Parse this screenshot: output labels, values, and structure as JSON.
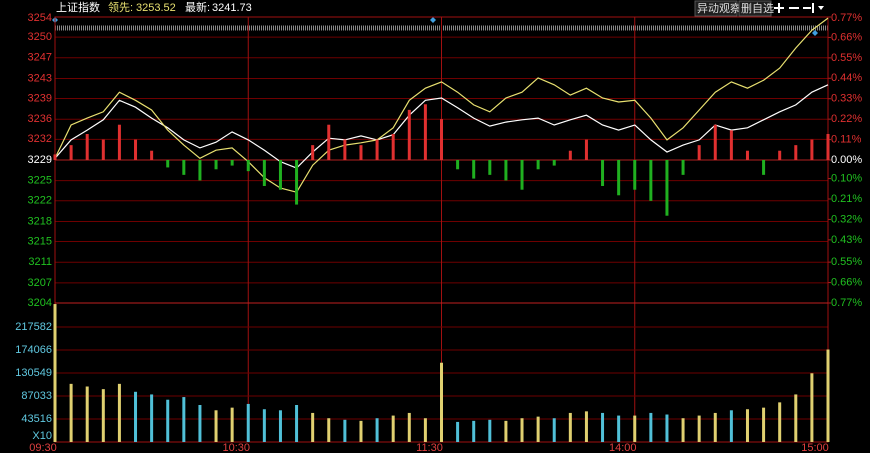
{
  "header": {
    "name": "上证指数",
    "lead_label": "领先:",
    "lead_value": 3253.52,
    "last_label": "最新:",
    "last_value": 3241.73,
    "buttons": [
      "异动观察",
      "删自选"
    ]
  },
  "chart_data": [
    {
      "type": "line",
      "x": [
        0,
        5,
        10,
        15,
        20,
        25,
        30,
        35,
        40,
        45,
        50,
        55,
        60,
        65,
        70,
        75,
        80,
        85,
        90,
        95,
        100,
        105,
        110,
        115,
        120,
        125,
        130,
        135,
        140,
        145,
        150,
        155,
        160,
        165,
        170,
        175,
        180,
        185,
        190,
        195,
        200,
        205,
        210,
        215,
        220,
        225,
        230,
        235,
        240
      ],
      "xlim": [
        0,
        240
      ],
      "xticks": [
        {
          "value": 0,
          "label": "09:30"
        },
        {
          "value": 60,
          "label": "10:30"
        },
        {
          "value": 120,
          "label": "11:30"
        },
        {
          "value": 180,
          "label": "14:00"
        },
        {
          "value": 240,
          "label": "15:00"
        }
      ],
      "ylim": [
        3204.0,
        3253.8
      ],
      "yticks": [
        {
          "value": 3253.8,
          "label": "3254"
        },
        {
          "value": 3250.3,
          "label": "3250"
        },
        {
          "value": 3246.7,
          "label": "3247"
        },
        {
          "value": 3243.1,
          "label": "3243"
        },
        {
          "value": 3239.6,
          "label": "3239"
        },
        {
          "value": 3236.0,
          "label": "3236"
        },
        {
          "value": 3232.5,
          "label": "3232"
        },
        {
          "value": 3228.9,
          "label": "3229"
        },
        {
          "value": 3225.3,
          "label": "3225"
        },
        {
          "value": 3221.8,
          "label": "3222"
        },
        {
          "value": 3218.2,
          "label": "3218"
        },
        {
          "value": 3214.7,
          "label": "3215"
        },
        {
          "value": 3211.1,
          "label": "3211"
        },
        {
          "value": 3207.5,
          "label": "3207"
        },
        {
          "value": 3204.0,
          "label": "3204"
        }
      ],
      "y2lim": [
        -0.77,
        0.77
      ],
      "y2ticks": [
        {
          "value": 0.77,
          "label": "0.77%"
        },
        {
          "value": 0.66,
          "label": "0.66%"
        },
        {
          "value": 0.55,
          "label": "0.55%"
        },
        {
          "value": 0.44,
          "label": "0.44%"
        },
        {
          "value": 0.33,
          "label": "0.33%"
        },
        {
          "value": 0.22,
          "label": "0.22%"
        },
        {
          "value": 0.11,
          "label": "0.11%"
        },
        {
          "value": 0,
          "label": "0.00%"
        },
        {
          "value": -0.1,
          "label": "0.10%"
        },
        {
          "value": -0.21,
          "label": "0.21%"
        },
        {
          "value": -0.32,
          "label": "0.32%"
        },
        {
          "value": -0.43,
          "label": "0.43%"
        },
        {
          "value": -0.55,
          "label": "0.55%"
        },
        {
          "value": -0.66,
          "label": "0.66%"
        },
        {
          "value": -0.77,
          "label": "0.77%"
        }
      ],
      "series": [
        {
          "color": "#ffffff",
          "values": [
            3229.2,
            3232.4,
            3234.1,
            3235.9,
            3239.3,
            3238.1,
            3236.2,
            3234.5,
            3232.4,
            3231.0,
            3232.0,
            3233.8,
            3232.4,
            3230.6,
            3228.6,
            3227.5,
            3230.3,
            3232.7,
            3232.4,
            3233.1,
            3232.4,
            3233.3,
            3236.7,
            3239.3,
            3239.7,
            3238.0,
            3236.2,
            3234.8,
            3235.5,
            3235.9,
            3236.2,
            3235.0,
            3235.9,
            3236.7,
            3235.0,
            3234.1,
            3235.0,
            3232.4,
            3230.3,
            3231.5,
            3232.4,
            3235.0,
            3234.1,
            3234.5,
            3235.9,
            3237.3,
            3238.5,
            3240.7,
            3242.0
          ]
        },
        {
          "color": "#e8e070",
          "values": [
            3229.2,
            3235.0,
            3236.2,
            3237.3,
            3240.7,
            3239.3,
            3237.6,
            3234.1,
            3231.5,
            3229.2,
            3230.6,
            3231.0,
            3228.6,
            3225.8,
            3224.0,
            3223.3,
            3228.0,
            3230.6,
            3231.5,
            3231.9,
            3232.4,
            3234.5,
            3239.3,
            3241.4,
            3242.5,
            3240.7,
            3238.5,
            3237.3,
            3239.7,
            3240.7,
            3243.2,
            3242.0,
            3240.2,
            3241.4,
            3239.7,
            3239.0,
            3239.3,
            3236.2,
            3232.4,
            3234.5,
            3237.6,
            3240.7,
            3242.5,
            3241.4,
            3242.8,
            3244.9,
            3248.4,
            3251.5,
            3253.6
          ]
        },
        {
          "type": "bar",
          "axis": "y2",
          "up_color": "#e03030",
          "down_color": "#20b020",
          "values": [
            0.03,
            0.08,
            0.14,
            0.11,
            0.19,
            0.11,
            0.05,
            -0.04,
            -0.08,
            -0.11,
            -0.05,
            -0.03,
            -0.06,
            -0.14,
            -0.16,
            -0.24,
            0.08,
            0.19,
            0.11,
            0.08,
            0.11,
            0.14,
            0.27,
            0.3,
            0.22,
            -0.05,
            -0.1,
            -0.08,
            -0.11,
            -0.16,
            -0.05,
            -0.03,
            0.05,
            0.11,
            -0.14,
            -0.19,
            -0.16,
            -0.22,
            -0.3,
            -0.08,
            0.08,
            0.19,
            0.16,
            0.05,
            -0.08,
            0.05,
            0.08,
            0.11,
            0.14
          ]
        }
      ]
    },
    {
      "type": "bar",
      "x": [
        0,
        5,
        10,
        15,
        20,
        25,
        30,
        35,
        40,
        45,
        50,
        55,
        60,
        65,
        70,
        75,
        80,
        85,
        90,
        95,
        100,
        105,
        110,
        115,
        120,
        125,
        130,
        135,
        140,
        145,
        150,
        155,
        160,
        165,
        170,
        175,
        180,
        185,
        190,
        195,
        200,
        205,
        210,
        215,
        220,
        225,
        230,
        235,
        240
      ],
      "xlim": [
        0,
        240
      ],
      "ylim": [
        0,
        263000
      ],
      "yticks": [
        43516,
        87033,
        130549,
        174066,
        217582
      ],
      "unit": "X10",
      "up_color": "#e0d070",
      "down_color": "#50c0d8",
      "values": [
        261000,
        110000,
        105000,
        100000,
        110000,
        95000,
        90000,
        80000,
        85000,
        70000,
        60000,
        65000,
        72000,
        62000,
        60000,
        70000,
        55000,
        45000,
        42000,
        40000,
        45000,
        50000,
        55000,
        45000,
        150000,
        38000,
        40000,
        42000,
        40000,
        45000,
        48000,
        45000,
        55000,
        58000,
        55000,
        50000,
        50000,
        55000,
        52000,
        45000,
        50000,
        55000,
        60000,
        62000,
        65000,
        75000,
        90000,
        130000,
        175000
      ]
    }
  ]
}
